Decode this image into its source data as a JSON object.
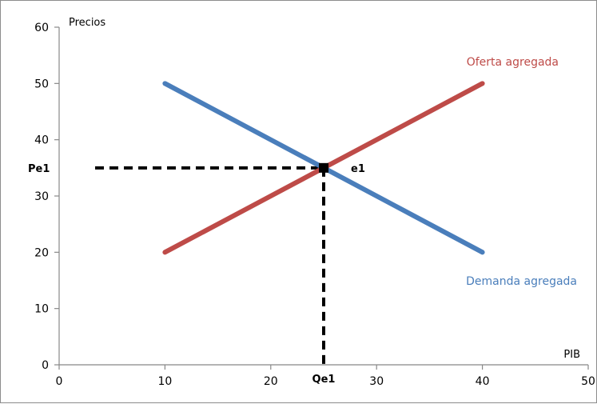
{
  "chart_data": {
    "type": "line",
    "xlabel": "PIB",
    "ylabel": "Precios",
    "xlim": [
      0,
      50
    ],
    "ylim": [
      0,
      60
    ],
    "x_ticks": [
      0,
      10,
      20,
      30,
      40,
      50
    ],
    "y_ticks": [
      0,
      10,
      20,
      30,
      40,
      50,
      60
    ],
    "grid": false,
    "series": [
      {
        "name": "Demanda agregada",
        "color": "#4a7ebb",
        "x": [
          10,
          40
        ],
        "y": [
          50,
          20
        ]
      },
      {
        "name": "Oferta agregada",
        "color": "#be4b48",
        "x": [
          10,
          40
        ],
        "y": [
          20,
          50
        ]
      }
    ],
    "equilibrium": {
      "label": "e1",
      "x": 25,
      "y": 35,
      "price_label": "Pe1",
      "quantity_label": "Qe1"
    }
  }
}
